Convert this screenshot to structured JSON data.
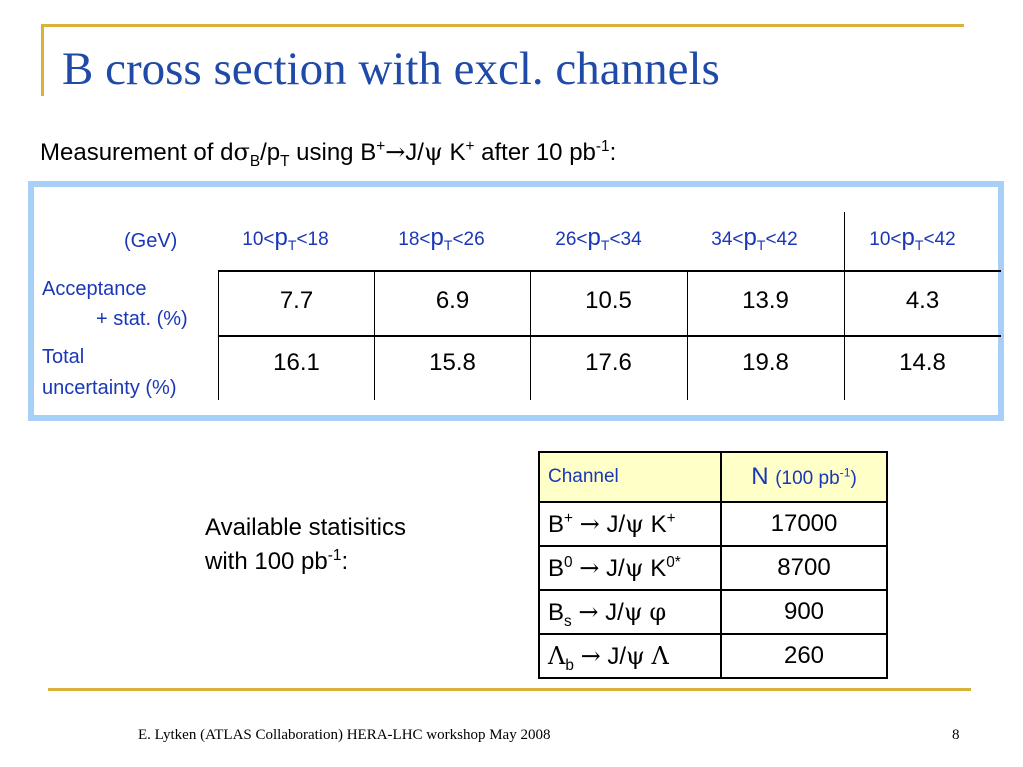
{
  "title": "B cross section with excl. channels",
  "subtitle": {
    "prefix": "Measurement of d",
    "sigma": "σ",
    "sigma_sub": "B",
    "mid1": "/p",
    "pt_sub": "T",
    "mid2": " using B",
    "plus": "+",
    "arrow": "→",
    "mid3": "J/",
    "psi": "ψ",
    "mid4": " K",
    "plus2": "+",
    "mid5": " after 10 pb",
    "exp": "-1",
    "suffix": ":"
  },
  "measurement_table": {
    "unit_label": "(GeV)",
    "columns": [
      {
        "lo": "10<",
        "p": "p",
        "sub": "T",
        "hi": "<18"
      },
      {
        "lo": "18<",
        "p": "p",
        "sub": "T",
        "hi": "<26"
      },
      {
        "lo": "26<",
        "p": "p",
        "sub": "T",
        "hi": "<34"
      },
      {
        "lo": "34<",
        "p": "p",
        "sub": "T",
        "hi": "<42"
      },
      {
        "lo": "10<",
        "p": "p",
        "sub": "T",
        "hi": "<42"
      }
    ],
    "rows": [
      {
        "label_line1": "Acceptance",
        "label_line2": "+ stat. (%)",
        "values": [
          "7.7",
          "6.9",
          "10.5",
          "13.9",
          "4.3"
        ]
      },
      {
        "label_line1": "Total",
        "label_line2": "uncertainty (%)",
        "values": [
          "16.1",
          "15.8",
          "17.6",
          "19.8",
          "14.8"
        ]
      }
    ]
  },
  "available": {
    "line1": "Available statisitics",
    "line2_prefix": "with 100 pb",
    "line2_exp": "-1",
    "line2_suffix": ":"
  },
  "channel_table": {
    "header_channel": "Channel",
    "header_n": "N",
    "header_n_unit_prefix": "(100 pb",
    "header_n_unit_exp": "-1",
    "header_n_unit_suffix": ")",
    "rows": [
      {
        "a": "B",
        "a_sup": "+",
        "a_sub": "",
        "arrow": "→",
        "b": "J/",
        "psi": "ψ",
        "c": "K",
        "c_sup": "+",
        "c_sym": "",
        "n": "17000"
      },
      {
        "a": "B",
        "a_sup": "0",
        "a_sub": "",
        "arrow": "→",
        "b": "J/",
        "psi": "ψ",
        "c": "K",
        "c_sup": "0*",
        "c_sym": "",
        "n": "8700"
      },
      {
        "a": "B",
        "a_sup": "",
        "a_sub": "s",
        "arrow": "→",
        "b": "J/",
        "psi": "ψ",
        "c": "",
        "c_sup": "",
        "c_sym": "φ",
        "n": "900"
      },
      {
        "a": "Λ",
        "a_sup": "",
        "a_sub": "b",
        "arrow": "→",
        "b": "J/",
        "psi": "ψ",
        "c": "",
        "c_sup": "",
        "c_sym": "Λ",
        "n": "260"
      }
    ]
  },
  "footer": "E. Lytken  (ATLAS Collaboration) HERA-LHC workshop May 2008",
  "page_number": "8",
  "colors": {
    "title": "#1f4aa8",
    "accent_gold": "#d9b13b",
    "box_border": "#a8cff6",
    "header_fill": "#ffffc8",
    "label_blue": "#1a37b8"
  }
}
